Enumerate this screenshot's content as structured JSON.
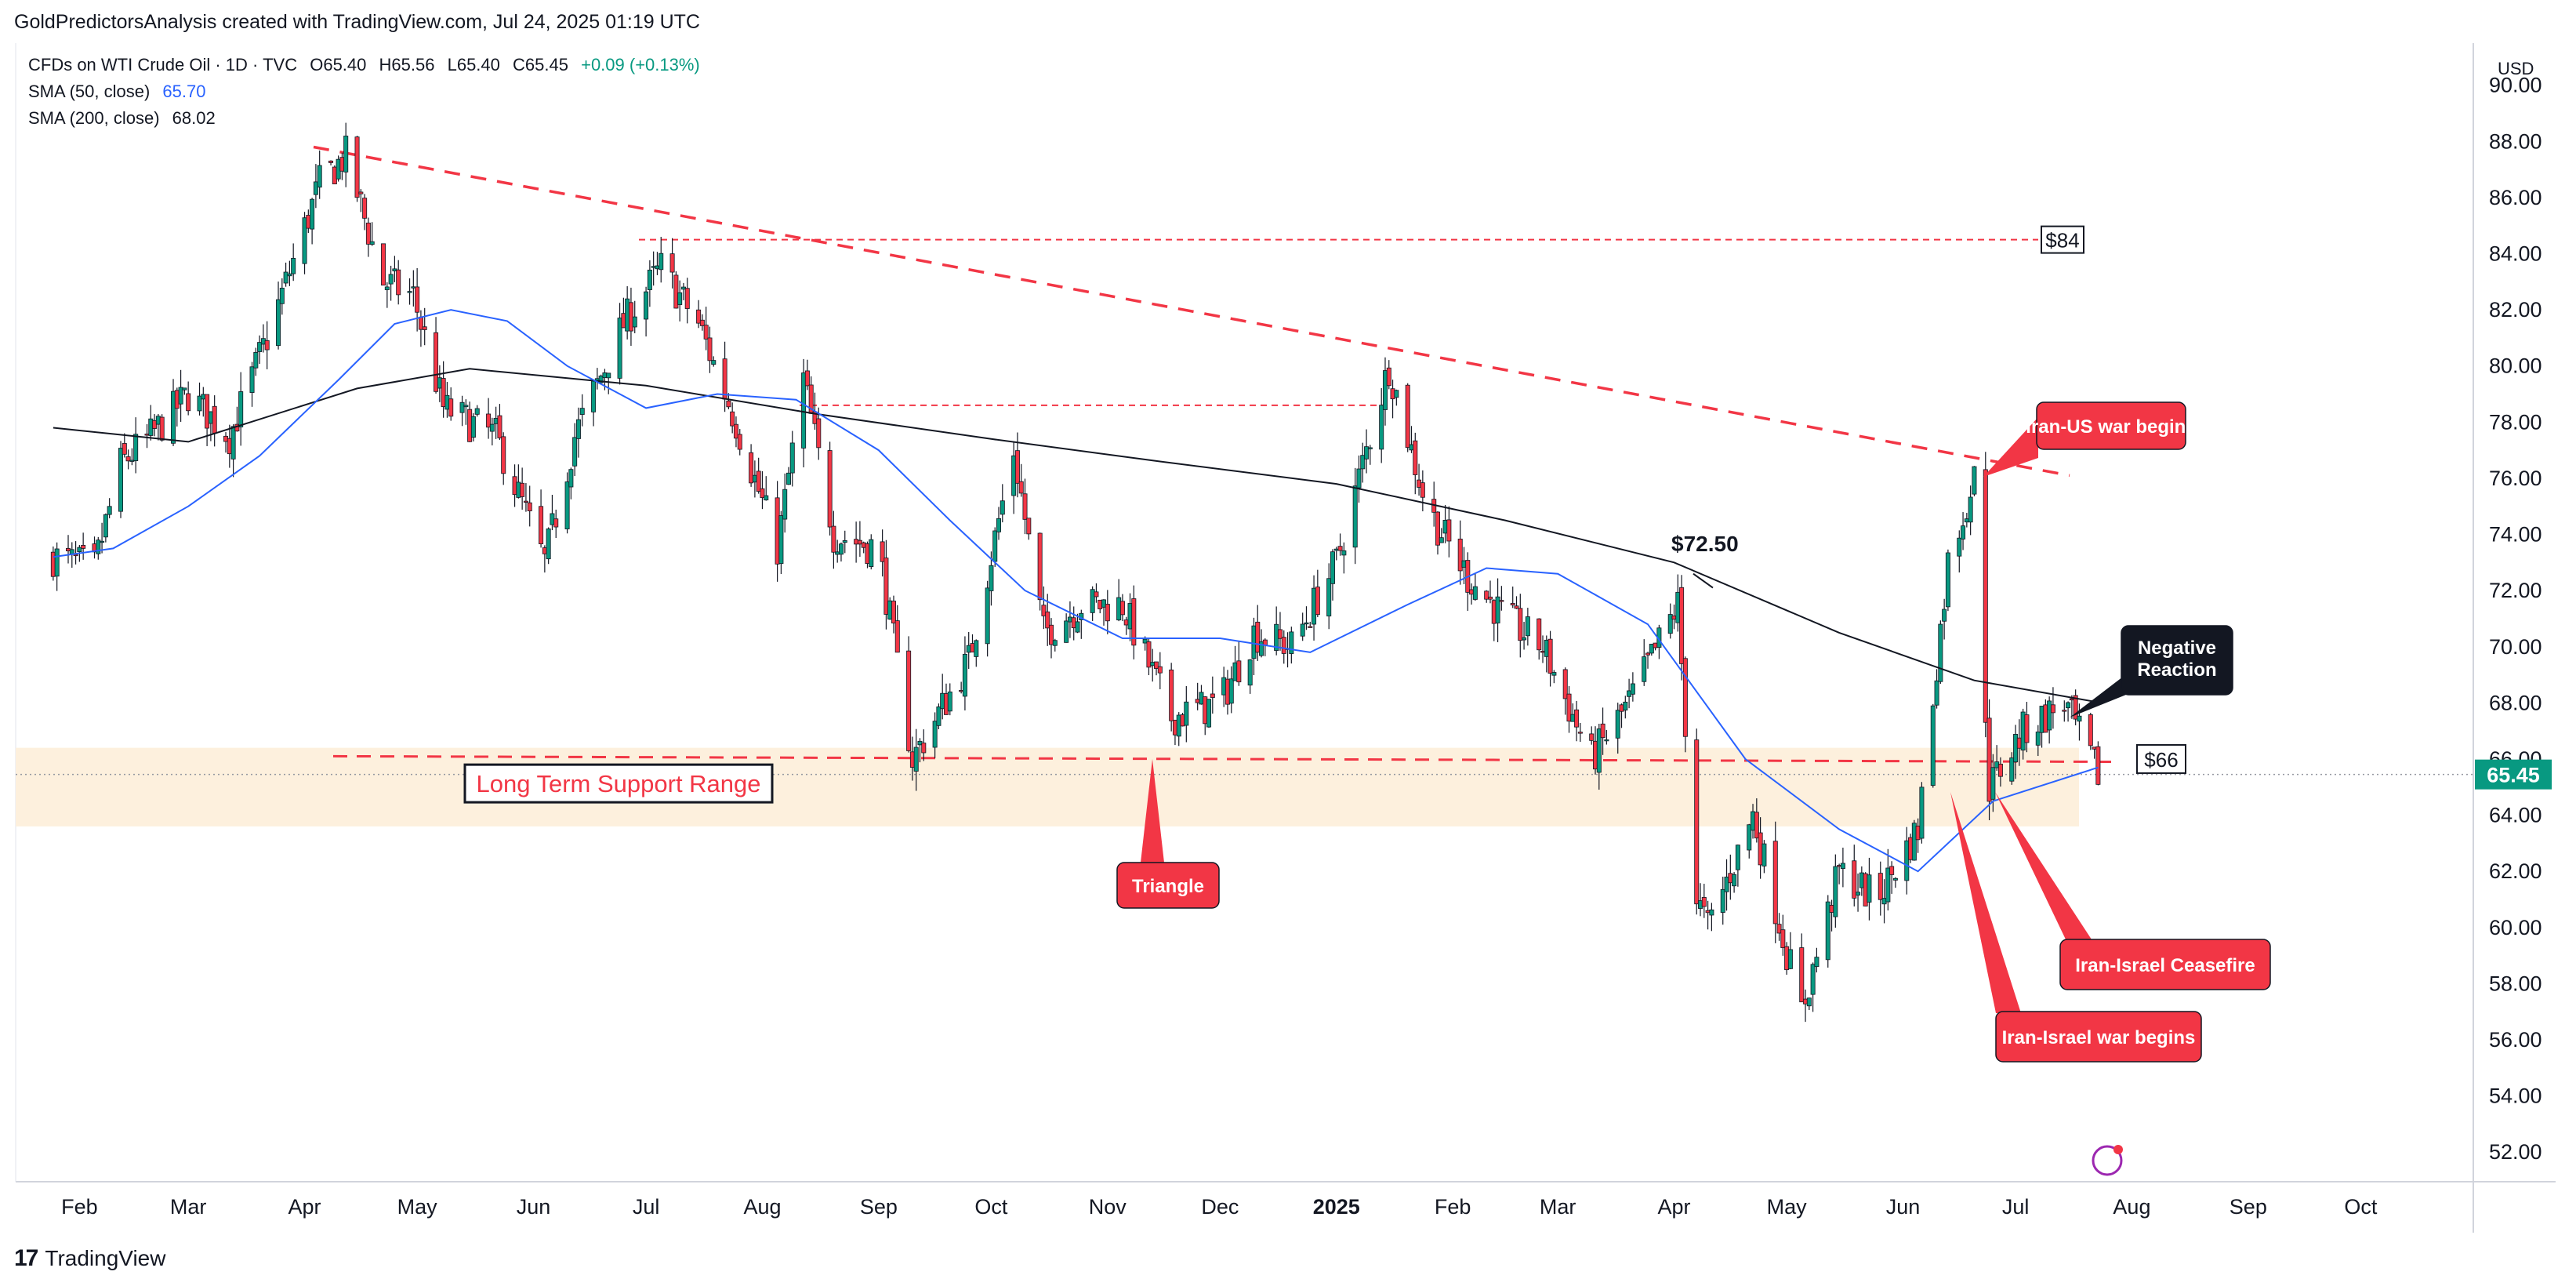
{
  "header": {
    "attribution": "GoldPredictorsAnalysis created with TradingView.com, Jul 24, 2025 01:19 UTC"
  },
  "legend": {
    "symbol_line": "CFDs on WTI Crude Oil · 1D · TVC",
    "open": "O65.40",
    "high": "H65.56",
    "low": "L65.40",
    "close": "C65.45",
    "change": "+0.09 (+0.13%)",
    "sma50_label": "SMA (50, close)",
    "sma50_value": "65.70",
    "sma200_label": "SMA (200, close)",
    "sma200_value": "68.02"
  },
  "footer": {
    "brand": "TradingView"
  },
  "colors": {
    "up": "#089981",
    "down": "#f23645",
    "sma50": "#2962ff",
    "sma200": "#131722",
    "support_band": "#fdf0dd",
    "annotation": "#f23645",
    "annotation_dark": "#131722"
  },
  "chart_data": {
    "type": "candlestick",
    "instrument": "CFDs on WTI Crude Oil",
    "timeframe": "1D",
    "currency": "USD",
    "ylim": [
      51,
      91.5
    ],
    "y_ticks": [
      "52.00",
      "54.00",
      "56.00",
      "58.00",
      "60.00",
      "62.00",
      "64.00",
      "66.00",
      "68.00",
      "70.00",
      "72.00",
      "74.00",
      "76.00",
      "78.00",
      "80.00",
      "82.00",
      "84.00",
      "86.00",
      "88.00",
      "90.00"
    ],
    "x_ticks": [
      "Feb",
      "Mar",
      "Apr",
      "May",
      "Jun",
      "Jul",
      "Aug",
      "Sep",
      "Oct",
      "Nov",
      "Dec",
      "2025",
      "Feb",
      "Mar",
      "Apr",
      "May",
      "Jun",
      "Jul",
      "Aug",
      "Sep",
      "Oct"
    ],
    "last_price": "65.45",
    "price_path": [
      {
        "date": "2024-01-25",
        "price": 73.2
      },
      {
        "date": "2024-02-05",
        "price": 72.8
      },
      {
        "date": "2024-02-12",
        "price": 76.5
      },
      {
        "date": "2024-02-20",
        "price": 77.5
      },
      {
        "date": "2024-03-01",
        "price": 79.0
      },
      {
        "date": "2024-03-12",
        "price": 77.5
      },
      {
        "date": "2024-03-22",
        "price": 81.0
      },
      {
        "date": "2024-04-05",
        "price": 86.5
      },
      {
        "date": "2024-04-12",
        "price": 87.5
      },
      {
        "date": "2024-04-22",
        "price": 83.0
      },
      {
        "date": "2024-04-30",
        "price": 82.5
      },
      {
        "date": "2024-05-08",
        "price": 78.5
      },
      {
        "date": "2024-05-22",
        "price": 77.5
      },
      {
        "date": "2024-06-04",
        "price": 73.0
      },
      {
        "date": "2024-06-12",
        "price": 77.5
      },
      {
        "date": "2024-06-25",
        "price": 81.5
      },
      {
        "date": "2024-07-05",
        "price": 83.5
      },
      {
        "date": "2024-07-15",
        "price": 81.5
      },
      {
        "date": "2024-07-25",
        "price": 78.0
      },
      {
        "date": "2024-08-05",
        "price": 73.5
      },
      {
        "date": "2024-08-12",
        "price": 79.5
      },
      {
        "date": "2024-08-20",
        "price": 74.0
      },
      {
        "date": "2024-09-01",
        "price": 73.5
      },
      {
        "date": "2024-09-10",
        "price": 66.0
      },
      {
        "date": "2024-09-25",
        "price": 69.5
      },
      {
        "date": "2024-10-07",
        "price": 77.0
      },
      {
        "date": "2024-10-15",
        "price": 70.5
      },
      {
        "date": "2024-10-25",
        "price": 71.5
      },
      {
        "date": "2024-11-05",
        "price": 71.5
      },
      {
        "date": "2024-11-18",
        "price": 67.5
      },
      {
        "date": "2024-12-01",
        "price": 68.0
      },
      {
        "date": "2024-12-10",
        "price": 70.5
      },
      {
        "date": "2024-12-20",
        "price": 70.0
      },
      {
        "date": "2025-01-01",
        "price": 73.0
      },
      {
        "date": "2025-01-15",
        "price": 80.0
      },
      {
        "date": "2025-01-25",
        "price": 75.0
      },
      {
        "date": "2025-02-05",
        "price": 72.5
      },
      {
        "date": "2025-02-15",
        "price": 71.0
      },
      {
        "date": "2025-02-25",
        "price": 70.0
      },
      {
        "date": "2025-03-10",
        "price": 66.0
      },
      {
        "date": "2025-03-20",
        "price": 68.0
      },
      {
        "date": "2025-04-02",
        "price": 71.5
      },
      {
        "date": "2025-04-07",
        "price": 61.0
      },
      {
        "date": "2025-04-10",
        "price": 60.0
      },
      {
        "date": "2025-04-22",
        "price": 64.0
      },
      {
        "date": "2025-05-05",
        "price": 57.0
      },
      {
        "date": "2025-05-15",
        "price": 62.0
      },
      {
        "date": "2025-05-25",
        "price": 61.0
      },
      {
        "date": "2025-06-05",
        "price": 63.5
      },
      {
        "date": "2025-06-13",
        "price": 73.0
      },
      {
        "date": "2025-06-20",
        "price": 76.0
      },
      {
        "date": "2025-06-24",
        "price": 65.0
      },
      {
        "date": "2025-07-03",
        "price": 67.0
      },
      {
        "date": "2025-07-14",
        "price": 68.0
      },
      {
        "date": "2025-07-23",
        "price": 65.45
      }
    ],
    "sma50": [
      {
        "date": "2024-01-25",
        "value": 73.2
      },
      {
        "date": "2024-02-10",
        "value": 73.5
      },
      {
        "date": "2024-03-01",
        "value": 75.0
      },
      {
        "date": "2024-03-20",
        "value": 76.8
      },
      {
        "date": "2024-04-10",
        "value": 79.5
      },
      {
        "date": "2024-04-25",
        "value": 81.5
      },
      {
        "date": "2024-05-10",
        "value": 82.0
      },
      {
        "date": "2024-05-25",
        "value": 81.6
      },
      {
        "date": "2024-06-10",
        "value": 80.0
      },
      {
        "date": "2024-07-01",
        "value": 78.5
      },
      {
        "date": "2024-07-20",
        "value": 79.0
      },
      {
        "date": "2024-08-10",
        "value": 78.8
      },
      {
        "date": "2024-09-01",
        "value": 77.0
      },
      {
        "date": "2024-09-20",
        "value": 74.5
      },
      {
        "date": "2024-10-10",
        "value": 72.0
      },
      {
        "date": "2024-11-05",
        "value": 70.3
      },
      {
        "date": "2024-12-01",
        "value": 70.3
      },
      {
        "date": "2024-12-25",
        "value": 69.8
      },
      {
        "date": "2025-01-20",
        "value": 71.5
      },
      {
        "date": "2025-02-10",
        "value": 72.8
      },
      {
        "date": "2025-03-01",
        "value": 72.6
      },
      {
        "date": "2025-03-25",
        "value": 70.8
      },
      {
        "date": "2025-04-20",
        "value": 66.0
      },
      {
        "date": "2025-05-15",
        "value": 63.5
      },
      {
        "date": "2025-06-05",
        "value": 62.0
      },
      {
        "date": "2025-06-25",
        "value": 64.5
      },
      {
        "date": "2025-07-23",
        "value": 65.7
      }
    ],
    "sma200": [
      {
        "date": "2024-01-25",
        "value": 77.8
      },
      {
        "date": "2024-03-01",
        "value": 77.3
      },
      {
        "date": "2024-04-15",
        "value": 79.2
      },
      {
        "date": "2024-05-15",
        "value": 79.9
      },
      {
        "date": "2024-07-01",
        "value": 79.3
      },
      {
        "date": "2024-08-15",
        "value": 78.3
      },
      {
        "date": "2024-10-01",
        "value": 77.4
      },
      {
        "date": "2024-11-15",
        "value": 76.6
      },
      {
        "date": "2025-01-01",
        "value": 75.8
      },
      {
        "date": "2025-02-15",
        "value": 74.5
      },
      {
        "date": "2025-04-01",
        "value": 73.0
      },
      {
        "date": "2025-05-15",
        "value": 70.5
      },
      {
        "date": "2025-06-20",
        "value": 68.8
      },
      {
        "date": "2025-07-23",
        "value": 68.02
      }
    ],
    "annotations": {
      "trendline_label": "",
      "level_84": "$84",
      "level_7250": "$72.50",
      "level_66": "$66",
      "support_label": "Long Term Support Range",
      "support_range": [
        63.6,
        66.4
      ],
      "triangle_label": "Triangle",
      "iran_us": "Iran-US war begins",
      "negative_reaction": "Negative Reaction",
      "ceasefire": "Iran-Israel Ceasefire",
      "iran_israel": "Iran-Israel war begins"
    }
  }
}
